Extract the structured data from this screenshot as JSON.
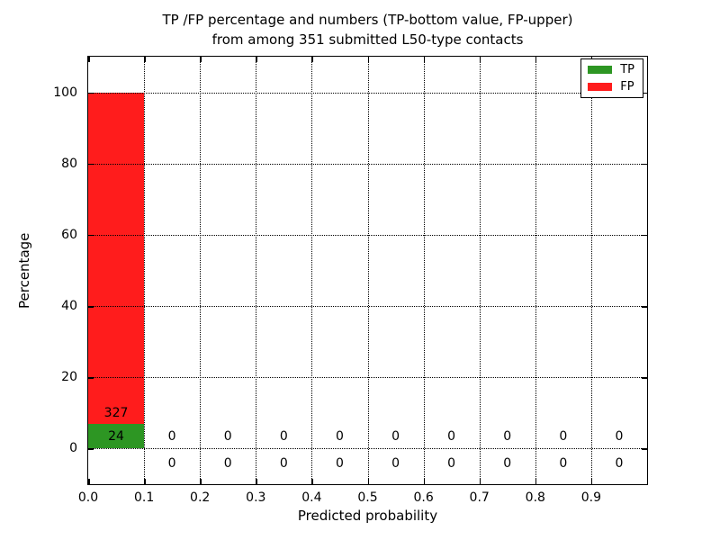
{
  "figure": {
    "title_line1": "TP /FP percentage and numbers (TP-bottom value, FP-upper)",
    "title_line2": "from among 351 submitted L50-type contacts",
    "xlabel": "Predicted probability",
    "ylabel": "Percentage"
  },
  "legend": {
    "items": [
      {
        "label": "TP",
        "color": "#2d9623"
      },
      {
        "label": "FP",
        "color": "#ff1c1c"
      }
    ]
  },
  "chart_data": {
    "type": "bar",
    "stacked": true,
    "title": "TP /FP percentage and numbers (TP-bottom value, FP-upper) from among 351 submitted L50-type contacts",
    "xlabel": "Predicted probability",
    "ylabel": "Percentage",
    "total_submitted": 351,
    "xlim": [
      0.0,
      1.0
    ],
    "ylim": [
      -10,
      110
    ],
    "x_ticks": [
      0.0,
      0.1,
      0.2,
      0.3,
      0.4,
      0.5,
      0.6,
      0.7,
      0.8,
      0.9
    ],
    "x_tick_labels": [
      "0.0",
      "0.1",
      "0.2",
      "0.3",
      "0.4",
      "0.5",
      "0.6",
      "0.7",
      "0.8",
      "0.9"
    ],
    "y_ticks": [
      0,
      20,
      40,
      60,
      80,
      100
    ],
    "y_tick_labels": [
      "0",
      "20",
      "40",
      "60",
      "80",
      "100"
    ],
    "grid": "dotted",
    "legend_position": "upper right",
    "bins": {
      "starts": [
        0.0,
        0.1,
        0.2,
        0.3,
        0.4,
        0.5,
        0.6,
        0.7,
        0.8,
        0.9
      ],
      "width": 0.1
    },
    "series": [
      {
        "name": "TP",
        "color": "#2d9623",
        "counts": [
          24,
          0,
          0,
          0,
          0,
          0,
          0,
          0,
          0,
          0
        ],
        "percent": [
          6.84,
          0,
          0,
          0,
          0,
          0,
          0,
          0,
          0,
          0
        ]
      },
      {
        "name": "FP",
        "color": "#ff1c1c",
        "counts": [
          327,
          0,
          0,
          0,
          0,
          0,
          0,
          0,
          0,
          0
        ],
        "percent": [
          93.16,
          0,
          0,
          0,
          0,
          0,
          0,
          0,
          0,
          0
        ]
      }
    ]
  }
}
